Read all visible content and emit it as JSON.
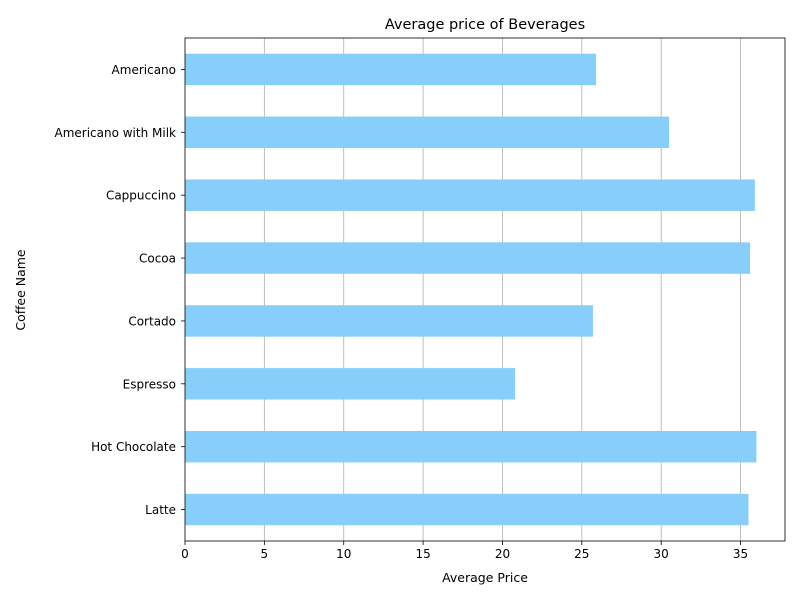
{
  "chart_data": {
    "type": "bar",
    "orientation": "horizontal",
    "title": "Average price of Beverages",
    "xlabel": "Average Price",
    "ylabel": "Coffee Name",
    "categories": [
      "Americano",
      "Americano with Milk",
      "Cappuccino",
      "Cocoa",
      "Cortado",
      "Espresso",
      "Hot Chocolate",
      "Latte"
    ],
    "values": [
      25.9,
      30.5,
      35.9,
      35.6,
      25.7,
      20.8,
      36.0,
      35.5
    ],
    "xlim": [
      0,
      37.8
    ],
    "xticks": [
      0,
      5,
      10,
      15,
      20,
      25,
      30,
      35
    ],
    "grid": "x",
    "colors": {
      "bar": "#87CEFA",
      "grid": "#b0b0b0",
      "axis": "#000000"
    }
  }
}
